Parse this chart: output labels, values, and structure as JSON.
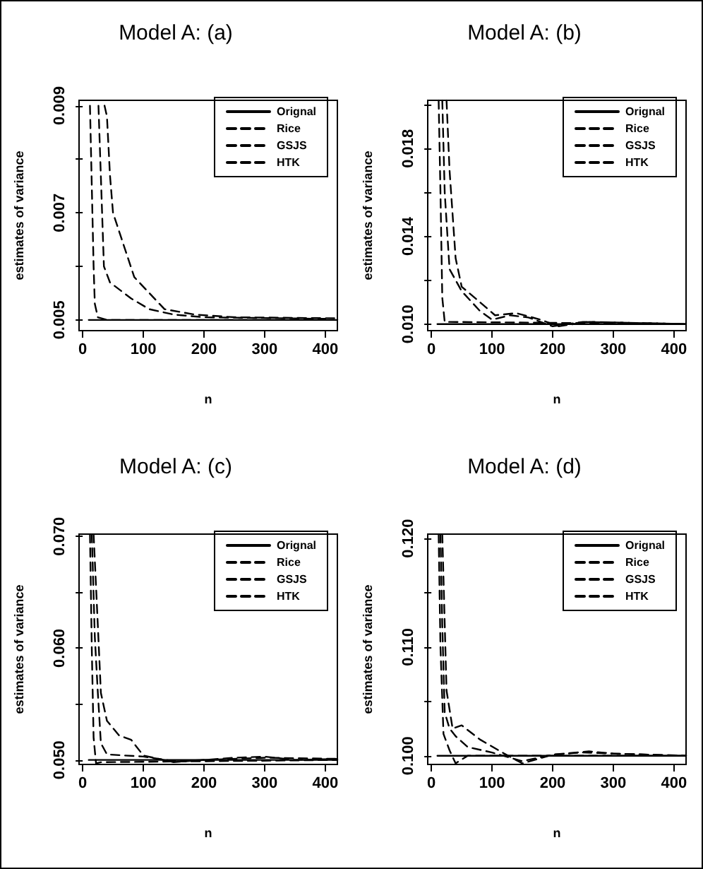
{
  "chart_data": [
    {
      "type": "line",
      "title": "Model A: (a)",
      "xlabel": "n",
      "ylabel": "estimates of variance",
      "legend": "top right",
      "grid": false,
      "marker": "none",
      "xlim": [
        -6,
        420
      ],
      "xticks": [
        0,
        100,
        200,
        300,
        400
      ],
      "ylim": [
        0.0048,
        0.0091
      ],
      "yticks": [
        0.005,
        {
          "value": 0.006,
          "label": null
        },
        0.007,
        {
          "value": 0.008,
          "label": null
        },
        0.009
      ],
      "series": [
        {
          "name": "Orignal",
          "color": "#000000",
          "line_style": "solid",
          "x": [
            10,
            420
          ],
          "values": [
            0.005,
            0.005
          ]
        },
        {
          "name": "Rice",
          "color": "#000000",
          "line_style": "dashed",
          "x": [
            26,
            35,
            45,
            80,
            110,
            150,
            200,
            400
          ],
          "values": [
            0.009,
            0.006,
            0.0057,
            0.0054,
            0.0052,
            0.0051,
            0.00505,
            0.00502
          ]
        },
        {
          "name": "GSJS",
          "color": "#000000",
          "line_style": "dashed",
          "x": [
            36,
            40,
            45,
            50,
            85,
            135,
            185,
            250,
            420
          ],
          "values": [
            0.009,
            0.0088,
            0.0077,
            0.007,
            0.0058,
            0.0052,
            0.0051,
            0.00505,
            0.00503
          ]
        },
        {
          "name": "HTK",
          "color": "#000000",
          "line_style": "dashed",
          "x": [
            12,
            15,
            18,
            20,
            25,
            40,
            380
          ],
          "values": [
            0.009,
            0.0075,
            0.006,
            0.0053,
            0.00505,
            0.005,
            0.005
          ]
        }
      ]
    },
    {
      "type": "line",
      "title": "Model A: (b)",
      "xlabel": "n",
      "ylabel": "estimates of variance",
      "legend": "top right",
      "grid": false,
      "marker": "none",
      "xlim": [
        -6,
        420
      ],
      "xticks": [
        0,
        100,
        200,
        300,
        400
      ],
      "ylim": [
        0.0097,
        0.0202
      ],
      "yticks": [
        {
          "value": 0.01,
          "label": "0.010"
        },
        {
          "value": 0.012,
          "label": null
        },
        0.014,
        {
          "value": 0.016,
          "label": null
        },
        0.018,
        {
          "value": 0.02,
          "label": null
        }
      ],
      "series": [
        {
          "name": "Orignal",
          "color": "#000000",
          "line_style": "solid",
          "x": [
            10,
            420
          ],
          "values": [
            0.01,
            0.01
          ]
        },
        {
          "name": "Rice",
          "color": "#000000",
          "line_style": "dashed",
          "x": [
            18,
            22,
            30,
            50,
            80,
            100,
            130,
            160,
            200,
            250,
            420
          ],
          "values": [
            0.0202,
            0.016,
            0.0125,
            0.0115,
            0.0106,
            0.0102,
            0.0104,
            0.0103,
            0.0099,
            0.0101,
            0.01
          ]
        },
        {
          "name": "GSJS",
          "color": "#000000",
          "line_style": "dashed",
          "x": [
            25,
            30,
            40,
            50,
            80,
            105,
            140,
            180,
            210,
            260,
            420
          ],
          "values": [
            0.0202,
            0.017,
            0.013,
            0.0117,
            0.011,
            0.0104,
            0.0105,
            0.0102,
            0.0099,
            0.0101,
            0.01
          ]
        },
        {
          "name": "HTK",
          "color": "#000000",
          "line_style": "dashed",
          "x": [
            12,
            15,
            18,
            22,
            420
          ],
          "values": [
            0.0202,
            0.016,
            0.0112,
            0.0101,
            0.01
          ]
        }
      ]
    },
    {
      "type": "line",
      "title": "Model A: (c)",
      "xlabel": "n",
      "ylabel": "estimates of variance",
      "legend": "top right",
      "grid": false,
      "marker": "none",
      "xlim": [
        -6,
        420
      ],
      "xticks": [
        0,
        100,
        200,
        300,
        400
      ],
      "ylim": [
        0.0496,
        0.0702
      ],
      "yticks": [
        {
          "value": 0.05,
          "label": "0.050"
        },
        {
          "value": 0.055,
          "label": null
        },
        {
          "value": 0.06,
          "label": "0.060"
        },
        {
          "value": 0.065,
          "label": null
        },
        {
          "value": 0.07,
          "label": "0.070"
        }
      ],
      "series": [
        {
          "name": "Orignal",
          "color": "#000000",
          "line_style": "solid",
          "x": [
            10,
            420
          ],
          "values": [
            0.05,
            0.05
          ]
        },
        {
          "name": "Rice",
          "color": "#000000",
          "line_style": "dashed",
          "x": [
            15,
            20,
            25,
            30,
            40,
            100,
            150,
            200,
            250,
            300,
            350,
            420
          ],
          "values": [
            0.0702,
            0.061,
            0.056,
            0.0515,
            0.0505,
            0.0503,
            0.0499,
            0.05,
            0.0502,
            0.0503,
            0.05,
            0.0501
          ]
        },
        {
          "name": "GSJS",
          "color": "#000000",
          "line_style": "dashed",
          "x": [
            18,
            25,
            30,
            40,
            60,
            80,
            100,
            150,
            200,
            300,
            420
          ],
          "values": [
            0.0702,
            0.062,
            0.056,
            0.0535,
            0.0522,
            0.0518,
            0.0504,
            0.0498,
            0.05,
            0.0502,
            0.0501
          ]
        },
        {
          "name": "HTK",
          "color": "#000000",
          "line_style": "dashed",
          "x": [
            12,
            15,
            18,
            22,
            30,
            420
          ],
          "values": [
            0.0702,
            0.06,
            0.052,
            0.0497,
            0.0498,
            0.05
          ]
        }
      ]
    },
    {
      "type": "line",
      "title": "Model A: (d)",
      "xlabel": "n",
      "ylabel": "estimates of variance",
      "legend": "top right",
      "grid": false,
      "marker": "none",
      "xlim": [
        -6,
        420
      ],
      "xticks": [
        0,
        100,
        200,
        300,
        400
      ],
      "ylim": [
        0.0992,
        0.1204
      ],
      "yticks": [
        {
          "value": 0.1,
          "label": "0.100"
        },
        {
          "value": 0.105,
          "label": null
        },
        {
          "value": 0.11,
          "label": "0.110"
        },
        {
          "value": 0.115,
          "label": null
        },
        {
          "value": 0.12,
          "label": "0.120"
        }
      ],
      "series": [
        {
          "name": "Orignal",
          "color": "#000000",
          "line_style": "solid",
          "x": [
            10,
            420
          ],
          "values": [
            0.1,
            0.1
          ]
        },
        {
          "name": "Rice",
          "color": "#000000",
          "line_style": "dashed",
          "x": [
            15,
            18,
            22,
            30,
            40,
            60,
            100,
            150,
            200,
            250,
            300,
            420
          ],
          "values": [
            0.1204,
            0.112,
            0.104,
            0.1025,
            0.1018,
            0.1008,
            0.1003,
            0.0995,
            0.1001,
            0.1003,
            0.1002,
            0.1
          ]
        },
        {
          "name": "GSJS",
          "color": "#000000",
          "line_style": "dashed",
          "x": [
            18,
            25,
            35,
            50,
            80,
            120,
            150,
            200,
            260,
            300,
            420
          ],
          "values": [
            0.1204,
            0.106,
            0.1025,
            0.1028,
            0.1015,
            0.1002,
            0.0993,
            0.1001,
            0.1004,
            0.1002,
            0.1
          ]
        },
        {
          "name": "HTK",
          "color": "#000000",
          "line_style": "dashed",
          "x": [
            12,
            15,
            20,
            30,
            40,
            60,
            420
          ],
          "values": [
            0.1204,
            0.11,
            0.102,
            0.1005,
            0.0993,
            0.1,
            0.1
          ]
        }
      ]
    }
  ]
}
